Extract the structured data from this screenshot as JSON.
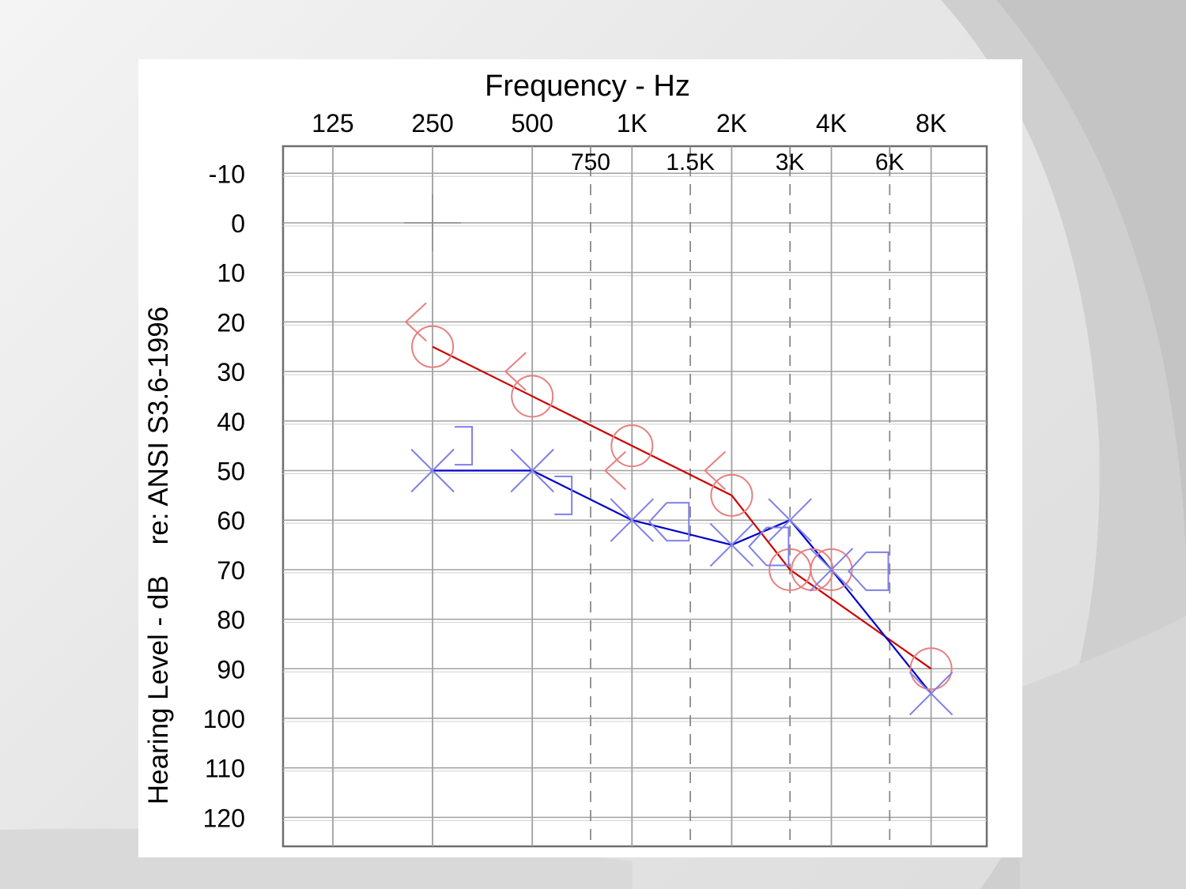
{
  "chart_data": {
    "type": "line",
    "title": "",
    "xlabel": "Frequency - Hz",
    "ylabel": "Hearing Level - dB    re: ANSI S3.6-1996",
    "x_scale": "log",
    "x_ticks_major": [
      {
        "freq": 125,
        "label": "125"
      },
      {
        "freq": 250,
        "label": "250"
      },
      {
        "freq": 500,
        "label": "500"
      },
      {
        "freq": 1000,
        "label": "1K"
      },
      {
        "freq": 2000,
        "label": "2K"
      },
      {
        "freq": 4000,
        "label": "4K"
      },
      {
        "freq": 8000,
        "label": "8K"
      }
    ],
    "x_ticks_minor": [
      {
        "freq": 750,
        "label": "750"
      },
      {
        "freq": 1500,
        "label": "1.5K"
      },
      {
        "freq": 3000,
        "label": "3K"
      },
      {
        "freq": 6000,
        "label": "6K"
      }
    ],
    "y_ticks": [
      -10,
      0,
      10,
      20,
      30,
      40,
      50,
      60,
      70,
      80,
      90,
      100,
      110,
      120
    ],
    "ylim": [
      -15,
      125
    ],
    "y_inverted": true,
    "grid": true,
    "colors": {
      "right_ear": "#e88080",
      "right_line": "#cc0000",
      "left_ear": "#7f7fe8",
      "left_line": "#0000cc",
      "grid": "#a0a0a0"
    },
    "series": [
      {
        "symbol": "circle",
        "color": "#e88080",
        "points": [
          {
            "freq": 250,
            "db": 25
          },
          {
            "freq": 500,
            "db": 35
          },
          {
            "freq": 1000,
            "db": 45
          },
          {
            "freq": 2000,
            "db": 55
          },
          {
            "freq": 3000,
            "db": 70
          },
          {
            "freq": 3500,
            "db": 70
          },
          {
            "freq": 4000,
            "db": 70
          },
          {
            "freq": 8000,
            "db": 90
          }
        ]
      },
      {
        "symbol": "cross",
        "color": "#7f7fe8",
        "points": [
          {
            "freq": 250,
            "db": 50
          },
          {
            "freq": 500,
            "db": 50
          },
          {
            "freq": 1000,
            "db": 60
          },
          {
            "freq": 2000,
            "db": 65
          },
          {
            "freq": 3000,
            "db": 60
          },
          {
            "freq": 4000,
            "db": 70
          },
          {
            "freq": 8000,
            "db": 95
          }
        ]
      },
      {
        "symbol": "bone-right-angle",
        "color": "#e88080",
        "points": [
          {
            "freq": 250,
            "db": 20
          },
          {
            "freq": 500,
            "db": 30
          },
          {
            "freq": 1000,
            "db": 50
          },
          {
            "freq": 2000,
            "db": 50
          }
        ]
      },
      {
        "symbol": "bone-left-bracket",
        "color": "#7f7fe8",
        "points": [
          {
            "freq": 250,
            "db": 45
          },
          {
            "freq": 500,
            "db": 55
          }
        ]
      },
      {
        "symbol": "masked-bone-left",
        "color": "#7f7fe8",
        "points": [
          {
            "freq": 1000,
            "db": 60
          },
          {
            "freq": 2000,
            "db": 65
          },
          {
            "freq": 4000,
            "db": 70
          }
        ]
      }
    ]
  }
}
